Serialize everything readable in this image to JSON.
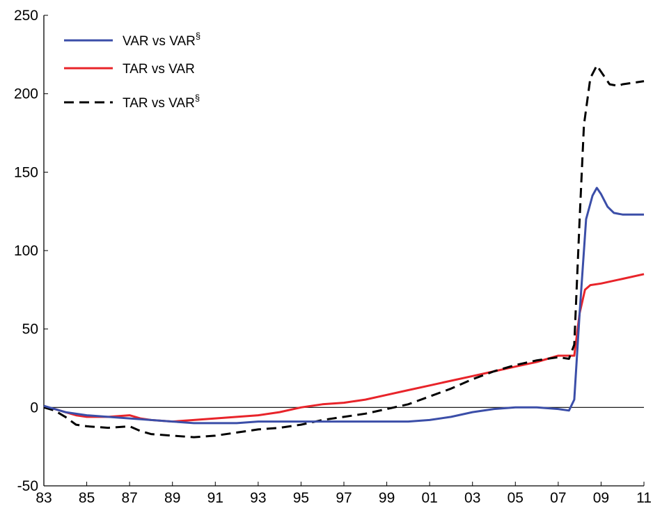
{
  "chart_data": {
    "type": "line",
    "title": "",
    "xlabel": "",
    "ylabel": "",
    "xlim": [
      1983,
      2011
    ],
    "ylim": [
      -50,
      250
    ],
    "x_ticks": [
      {
        "value": 1983,
        "label": "83"
      },
      {
        "value": 1985,
        "label": "85"
      },
      {
        "value": 1987,
        "label": "87"
      },
      {
        "value": 1989,
        "label": "89"
      },
      {
        "value": 1991,
        "label": "91"
      },
      {
        "value": 1993,
        "label": "93"
      },
      {
        "value": 1995,
        "label": "95"
      },
      {
        "value": 1997,
        "label": "97"
      },
      {
        "value": 1999,
        "label": "99"
      },
      {
        "value": 2001,
        "label": "01"
      },
      {
        "value": 2003,
        "label": "03"
      },
      {
        "value": 2005,
        "label": "05"
      },
      {
        "value": 2007,
        "label": "07"
      },
      {
        "value": 2009,
        "label": "09"
      },
      {
        "value": 2011,
        "label": "11"
      }
    ],
    "y_ticks": [
      {
        "value": -50,
        "label": "-50"
      },
      {
        "value": 0,
        "label": "0"
      },
      {
        "value": 50,
        "label": "50"
      },
      {
        "value": 100,
        "label": "100"
      },
      {
        "value": 150,
        "label": "150"
      },
      {
        "value": 200,
        "label": "200"
      },
      {
        "value": 250,
        "label": "250"
      }
    ],
    "zero_line": true,
    "grid": false,
    "legend_position": "top-left",
    "series": [
      {
        "name": "VAR vs VAR",
        "name_sup": "§",
        "color": "#3b4ea8",
        "dash": "solid",
        "points": [
          [
            1983.0,
            1
          ],
          [
            1983.5,
            -1
          ],
          [
            1984.0,
            -3
          ],
          [
            1985.0,
            -5
          ],
          [
            1986.0,
            -6
          ],
          [
            1987.0,
            -7
          ],
          [
            1988.0,
            -8
          ],
          [
            1989.0,
            -9
          ],
          [
            1990.0,
            -10
          ],
          [
            1991.0,
            -10
          ],
          [
            1992.0,
            -10
          ],
          [
            1993.0,
            -9
          ],
          [
            1994.0,
            -9
          ],
          [
            1995.0,
            -9
          ],
          [
            1996.0,
            -9
          ],
          [
            1997.0,
            -9
          ],
          [
            1998.0,
            -9
          ],
          [
            1999.0,
            -9
          ],
          [
            2000.0,
            -9
          ],
          [
            2001.0,
            -8
          ],
          [
            2002.0,
            -6
          ],
          [
            2003.0,
            -3
          ],
          [
            2004.0,
            -1
          ],
          [
            2005.0,
            0
          ],
          [
            2006.0,
            0
          ],
          [
            2007.0,
            -1
          ],
          [
            2007.5,
            -2
          ],
          [
            2007.75,
            5
          ],
          [
            2008.0,
            60
          ],
          [
            2008.3,
            120
          ],
          [
            2008.6,
            135
          ],
          [
            2008.8,
            140
          ],
          [
            2009.0,
            136
          ],
          [
            2009.3,
            128
          ],
          [
            2009.6,
            124
          ],
          [
            2010.0,
            123
          ],
          [
            2011.0,
            123
          ]
        ]
      },
      {
        "name": "TAR vs VAR",
        "name_sup": "",
        "color": "#e8242a",
        "dash": "solid",
        "points": [
          [
            1983.0,
            0
          ],
          [
            1983.5,
            -1
          ],
          [
            1984.0,
            -3
          ],
          [
            1984.5,
            -5
          ],
          [
            1985.0,
            -6
          ],
          [
            1986.0,
            -6
          ],
          [
            1987.0,
            -5
          ],
          [
            1987.5,
            -7
          ],
          [
            1988.0,
            -8
          ],
          [
            1989.0,
            -9
          ],
          [
            1990.0,
            -8
          ],
          [
            1991.0,
            -7
          ],
          [
            1992.0,
            -6
          ],
          [
            1993.0,
            -5
          ],
          [
            1994.0,
            -3
          ],
          [
            1995.0,
            0
          ],
          [
            1996.0,
            2
          ],
          [
            1997.0,
            3
          ],
          [
            1998.0,
            5
          ],
          [
            1999.0,
            8
          ],
          [
            2000.0,
            11
          ],
          [
            2001.0,
            14
          ],
          [
            2002.0,
            17
          ],
          [
            2003.0,
            20
          ],
          [
            2004.0,
            23
          ],
          [
            2005.0,
            26
          ],
          [
            2006.0,
            29
          ],
          [
            2007.0,
            33
          ],
          [
            2007.75,
            33
          ],
          [
            2008.0,
            60
          ],
          [
            2008.25,
            75
          ],
          [
            2008.5,
            78
          ],
          [
            2009.0,
            79
          ],
          [
            2010.0,
            82
          ],
          [
            2011.0,
            85
          ]
        ]
      },
      {
        "name": "TAR vs VAR",
        "name_sup": "§",
        "color": "#000000",
        "dash": "dashed",
        "points": [
          [
            1983.0,
            0
          ],
          [
            1983.5,
            -2
          ],
          [
            1984.0,
            -6
          ],
          [
            1984.5,
            -11
          ],
          [
            1985.0,
            -12
          ],
          [
            1986.0,
            -13
          ],
          [
            1987.0,
            -12
          ],
          [
            1987.5,
            -15
          ],
          [
            1988.0,
            -17
          ],
          [
            1989.0,
            -18
          ],
          [
            1990.0,
            -19
          ],
          [
            1991.0,
            -18
          ],
          [
            1992.0,
            -16
          ],
          [
            1993.0,
            -14
          ],
          [
            1994.0,
            -13
          ],
          [
            1995.0,
            -11
          ],
          [
            1996.0,
            -8
          ],
          [
            1997.0,
            -6
          ],
          [
            1998.0,
            -4
          ],
          [
            1999.0,
            -1
          ],
          [
            2000.0,
            2
          ],
          [
            2001.0,
            7
          ],
          [
            2002.0,
            12
          ],
          [
            2003.0,
            18
          ],
          [
            2004.0,
            23
          ],
          [
            2005.0,
            27
          ],
          [
            2006.0,
            30
          ],
          [
            2007.0,
            32
          ],
          [
            2007.5,
            31
          ],
          [
            2007.75,
            40
          ],
          [
            2008.0,
            120
          ],
          [
            2008.2,
            180
          ],
          [
            2008.5,
            210
          ],
          [
            2008.8,
            218
          ],
          [
            2009.1,
            212
          ],
          [
            2009.4,
            206
          ],
          [
            2009.8,
            205
          ],
          [
            2010.0,
            206
          ],
          [
            2010.5,
            207
          ],
          [
            2011.0,
            208
          ]
        ]
      }
    ]
  }
}
